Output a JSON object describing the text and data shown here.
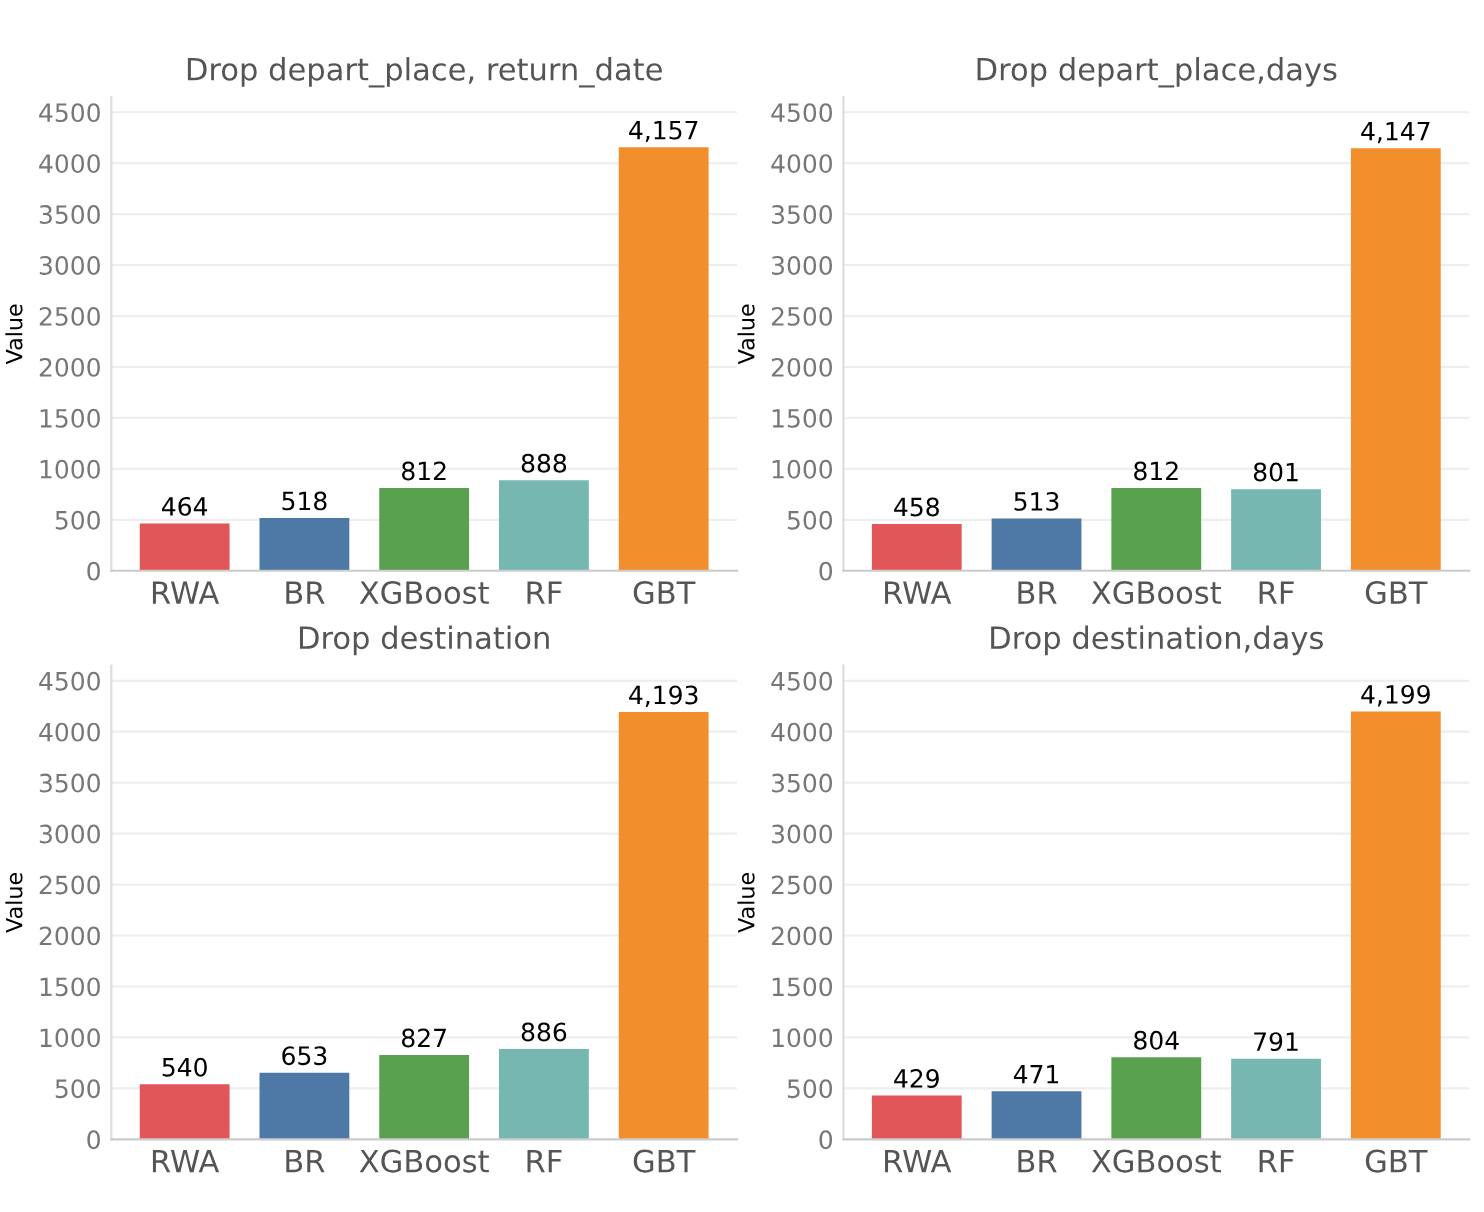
{
  "chart_data": [
    {
      "type": "bar",
      "title": "Drop depart_place, return_date",
      "ylabel": "Value",
      "categories": [
        "RWA",
        "BR",
        "XGBoost",
        "RF",
        "GBT"
      ],
      "values": [
        464,
        518,
        812,
        888,
        4157
      ],
      "value_labels": [
        "464",
        "518",
        "812",
        "888",
        "4,157"
      ],
      "colors": [
        "#e15759",
        "#4e79a7",
        "#59a14f",
        "#76b7b2",
        "#f28e2b"
      ],
      "ylim": [
        0,
        4650
      ],
      "yticks": [
        0,
        500,
        1000,
        1500,
        2000,
        2500,
        3000,
        3500,
        4000,
        4500
      ],
      "grid": "y"
    },
    {
      "type": "bar",
      "title": "Drop depart_place,days",
      "ylabel": "Value",
      "categories": [
        "RWA",
        "BR",
        "XGBoost",
        "RF",
        "GBT"
      ],
      "values": [
        458,
        513,
        812,
        801,
        4147
      ],
      "value_labels": [
        "458",
        "513",
        "812",
        "801",
        "4,147"
      ],
      "colors": [
        "#e15759",
        "#4e79a7",
        "#59a14f",
        "#76b7b2",
        "#f28e2b"
      ],
      "ylim": [
        0,
        4650
      ],
      "yticks": [
        0,
        500,
        1000,
        1500,
        2000,
        2500,
        3000,
        3500,
        4000,
        4500
      ],
      "grid": "y"
    },
    {
      "type": "bar",
      "title": "Drop destination",
      "ylabel": "Value",
      "categories": [
        "RWA",
        "BR",
        "XGBoost",
        "RF",
        "GBT"
      ],
      "values": [
        540,
        653,
        827,
        886,
        4193
      ],
      "value_labels": [
        "540",
        "653",
        "827",
        "886",
        "4,193"
      ],
      "colors": [
        "#e15759",
        "#4e79a7",
        "#59a14f",
        "#76b7b2",
        "#f28e2b"
      ],
      "ylim": [
        0,
        4650
      ],
      "yticks": [
        0,
        500,
        1000,
        1500,
        2000,
        2500,
        3000,
        3500,
        4000,
        4500
      ],
      "grid": "y"
    },
    {
      "type": "bar",
      "title": "Drop destination,days",
      "ylabel": "Value",
      "categories": [
        "RWA",
        "BR",
        "XGBoost",
        "RF",
        "GBT"
      ],
      "values": [
        429,
        471,
        804,
        791,
        4199
      ],
      "value_labels": [
        "429",
        "471",
        "804",
        "791",
        "4,199"
      ],
      "colors": [
        "#e15759",
        "#4e79a7",
        "#59a14f",
        "#76b7b2",
        "#f28e2b"
      ],
      "ylim": [
        0,
        4650
      ],
      "yticks": [
        0,
        500,
        1000,
        1500,
        2000,
        2500,
        3000,
        3500,
        4000,
        4500
      ],
      "grid": "y"
    }
  ]
}
